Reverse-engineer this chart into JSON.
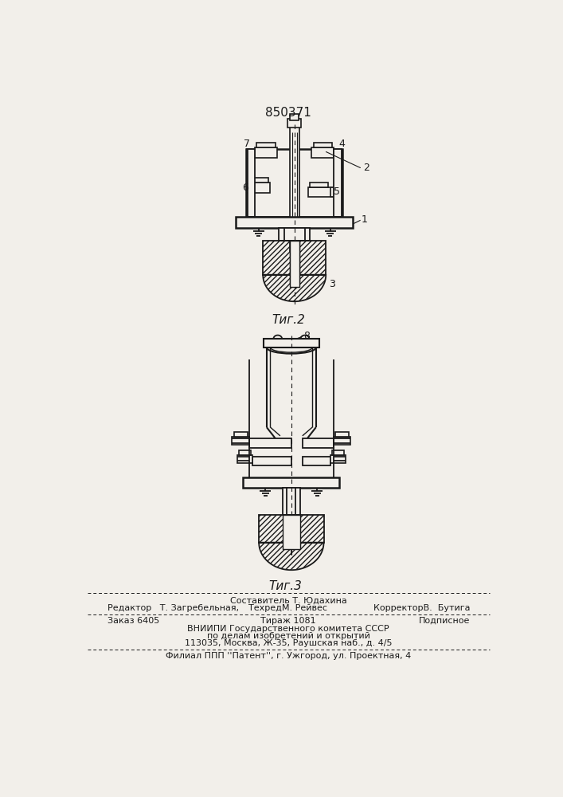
{
  "patent_number": "850371",
  "fig2_caption": "Τиг.2",
  "fig3_caption": "Τиг.3",
  "footer_line1_left": "Редактор   Т. Загребельная,",
  "footer_line1_center": "Составитель Т. Юдахина",
  "footer_line1_center2": "ТехредМ. Рейвес",
  "footer_line1_right": "КорректорВ.  Бутига",
  "footer_line2_left": "Заказ 6405",
  "footer_line2_center": "Тираж 1081",
  "footer_line2_right": "Подписное",
  "footer_line3": "ВНИИПИ Государственного комитета СССР",
  "footer_line4": "по делам изобретений и открытий",
  "footer_line5": "113035, Москва, Ж-35, Раушская наб., д. 4/5",
  "footer_line6": "Филиал ППП ''Патент'', г. Ужгород, ул. Проектная, 4",
  "bg_color": "#f2efea",
  "line_color": "#1a1a1a"
}
